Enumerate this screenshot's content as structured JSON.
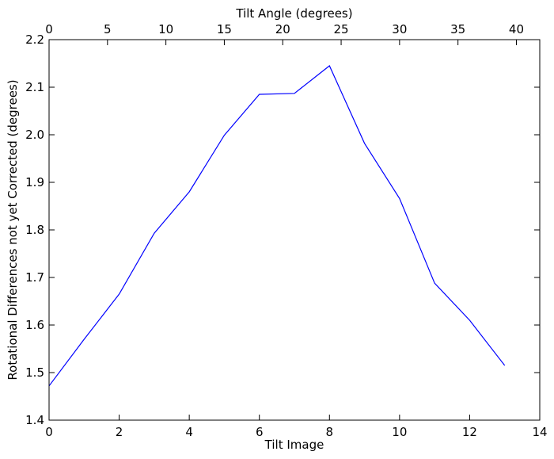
{
  "chart_data": {
    "type": "line",
    "xlabel": "Tilt Image",
    "ylabel": "Rotational Differences not yet Corrected (degrees)",
    "top_xlabel": "Tilt Angle (degrees)",
    "xlim": [
      0,
      14
    ],
    "ylim": [
      1.4,
      2.2
    ],
    "top_xlim": [
      0,
      42
    ],
    "x_ticks": [
      0,
      2,
      4,
      6,
      8,
      10,
      12,
      14
    ],
    "x_tick_labels": [
      "0",
      "2",
      "4",
      "6",
      "8",
      "10",
      "12",
      "14"
    ],
    "y_ticks": [
      1.4,
      1.5,
      1.6,
      1.7,
      1.8,
      1.9,
      2.0,
      2.1,
      2.2
    ],
    "y_tick_labels": [
      "1.4",
      "1.5",
      "1.6",
      "1.7",
      "1.8",
      "1.9",
      "2.0",
      "2.1",
      "2.2"
    ],
    "top_x_ticks": [
      0,
      5,
      10,
      15,
      20,
      25,
      30,
      35,
      40
    ],
    "top_x_tick_labels": [
      "0",
      "5",
      "10",
      "15",
      "20",
      "25",
      "30",
      "35",
      "40"
    ],
    "grid": false,
    "color": "#0000ff",
    "series": [
      {
        "x": [
          0,
          1,
          2,
          3,
          4,
          5,
          6,
          7,
          8,
          9,
          10,
          11,
          12,
          13
        ],
        "values": [
          1.472,
          1.57,
          1.665,
          1.793,
          1.88,
          1.999,
          2.085,
          2.087,
          2.145,
          1.982,
          1.866,
          1.688,
          1.61,
          1.515
        ]
      }
    ]
  }
}
